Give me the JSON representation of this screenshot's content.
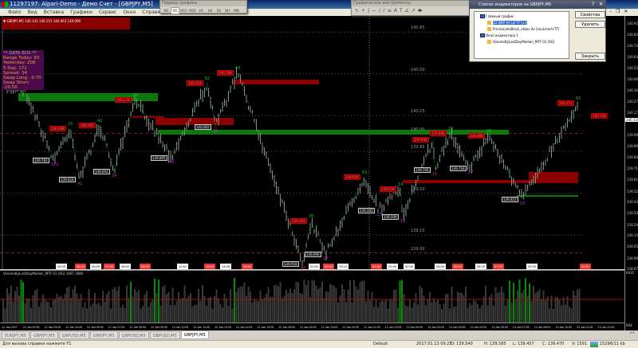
{
  "window": {
    "title": "11297197: Alpari-Demo - Демо Счет - [GBPJPY,M5]"
  },
  "menu": [
    "Файл",
    "Вид",
    "Вставка",
    "Графики",
    "Сервис",
    "Окно",
    "Справка"
  ],
  "period_toolbar": {
    "title": "Период графика",
    "periods": [
      "M1",
      "M5",
      "M15",
      "M30",
      "H1",
      "H4",
      "D1",
      "W1",
      "MN"
    ],
    "selected": "M5"
  },
  "tools_toolbar": {
    "title": "Графические инструменты",
    "icons": [
      "cursor-icon",
      "crosshair-icon",
      "vertical-line-icon",
      "horizontal-line-icon",
      "trendline-icon",
      "channel-icon",
      "fibo-icon",
      "text-icon",
      "label-icon",
      "gann-icon",
      "arrow-icon",
      "ellipse-icon"
    ]
  },
  "indicator_dialog": {
    "title": "Список индикаторов на GBPJPY,M5",
    "groups": [
      {
        "name": "Главный график",
        "items": [
          "ZZ NRP AA LB TT [x3]",
          "PriceLevelsBlack_oHjev 4x [LevLmod+TT]"
        ]
      },
      {
        "name": "Окно индикатора 1",
        "items": [
          "VolumeByLastDayMedian_MTF 01 [AG]"
        ]
      }
    ],
    "selected": "ZZ NRP AA LB TT [x3]",
    "buttons": {
      "properties": "Свойства",
      "delete": "Удалить",
      "close": "Закрыть"
    }
  },
  "chart": {
    "header": "▼ GBPJPY,M5  140.145 140.151 140.063 140.090",
    "current_price": "140.110",
    "right_label": "140.150",
    "level_labels": [
      "140.85",
      "140.50",
      "140.15",
      "140.00",
      "139.85",
      "139.50",
      "139.15",
      "139.00"
    ],
    "price_axis": [
      "140.925",
      "140.830",
      "140.740",
      "140.645",
      "140.550",
      "140.460",
      "140.365",
      "140.270",
      "140.175",
      "139.990",
      "139.895",
      "139.805",
      "139.710",
      "139.615",
      "139.520",
      "139.430",
      "139.335",
      "139.240",
      "139.150",
      "139.055",
      "138.960",
      "138.870"
    ],
    "data_box": {
      "title": "** DATA BOX **",
      "lines": [
        "Range Today: 93",
        "Yesterday: 208",
        "5 Day: 172",
        "Spread:    34",
        "Swap Long: -0.70",
        "Swap Short: -10.50"
      ]
    },
    "swings": [
      {
        "type": "high",
        "price": "140.385",
        "count": ""
      },
      {
        "type": "low",
        "price": "139.781",
        "count": "121"
      },
      {
        "type": "high",
        "price": "140.038",
        "count": "25"
      },
      {
        "type": "low",
        "price": "139.624",
        "count": "41"
      },
      {
        "type": "high",
        "price": "140.065",
        "count": "42"
      },
      {
        "type": "low",
        "price": "139.692",
        "count": "34"
      },
      {
        "type": "high",
        "price": "140.278",
        "count": "58"
      },
      {
        "type": "low",
        "price": "139.805",
        "count": "46"
      },
      {
        "type": "high",
        "price": "140.418",
        "count": "62"
      },
      {
        "type": "low",
        "price": "140.062",
        "count": "36"
      },
      {
        "type": "high",
        "price": "140.508",
        "count": "43"
      },
      {
        "type": "low",
        "price": "138.918",
        "count": "40"
      },
      {
        "type": "high",
        "price": "139.263",
        "count": "35"
      },
      {
        "type": "low",
        "price": "138.996",
        "count": "27"
      },
      {
        "type": "high",
        "price": "139.629",
        "count": "63"
      },
      {
        "type": "low",
        "price": "139.365",
        "count": "27"
      },
      {
        "type": "high",
        "price": "139.530",
        "count": "14"
      },
      {
        "type": "low",
        "price": "139.309",
        "count": "18"
      },
      {
        "type": "high",
        "price": "139.944",
        "count": "59"
      },
      {
        "type": "low",
        "price": "139.705",
        "count": "21"
      },
      {
        "type": "high",
        "price": "139.998",
        "count": "20"
      },
      {
        "type": "low",
        "price": "139.716",
        "count": "27"
      },
      {
        "type": "high",
        "price": "139.980",
        "count": "25"
      },
      {
        "type": "low",
        "price": "139.457",
        "count": "53"
      },
      {
        "type": "high",
        "price": "140.251",
        "count": "65"
      }
    ],
    "session_markers": [
      {
        "text": "04:05",
        "color": "white"
      },
      {
        "text": "05:20",
        "color": "red"
      },
      {
        "text": "05:05",
        "color": "white"
      },
      {
        "text": "07:00",
        "color": "red"
      },
      {
        "text": "08:00",
        "color": "white"
      },
      {
        "text": "09:20",
        "color": "red"
      },
      {
        "text": "11:40",
        "color": "white"
      },
      {
        "text": "13:20",
        "color": "red"
      },
      {
        "text": "14:05",
        "color": "white"
      },
      {
        "text": "15:40",
        "color": "red"
      },
      {
        "text": "21:00",
        "color": "white"
      },
      {
        "text": "20:20",
        "color": "red"
      },
      {
        "text": "23:10",
        "color": "white"
      },
      {
        "text": "21:40",
        "color": "red"
      },
      {
        "text": "20:40",
        "color": "white"
      },
      {
        "text": "02:00",
        "color": "white"
      },
      {
        "text": "04:05",
        "color": "white"
      },
      {
        "text": "05:00",
        "color": "red"
      },
      {
        "text": "06:20",
        "color": "white"
      },
      {
        "text": "07:20",
        "color": "red"
      },
      {
        "text": "09:20",
        "color": "white"
      },
      {
        "text": "11:00",
        "color": "red"
      }
    ]
  },
  "indicator_pane": {
    "label": "VolumeByLastDayMedian_MTF 01 [AG] 1667 3080",
    "axis_top": "6031",
    "axis_bottom": "608"
  },
  "time_axis": [
    "12 Jan 2017",
    "12 Jan 02:05",
    "12 Jan 03:05",
    "12 Jan 04:05",
    "12 Jan 06:05",
    "12 Jan 07:05",
    "12 Jan 08:05",
    "12 Jan 09:05",
    "12 Jan 10:05",
    "12 Jan 11:05",
    "12 Jan 12:05",
    "12 Jan 14:05",
    "12 Jan 15:05",
    "12 Jan 16:05",
    "12 Jan 18:05",
    "12 Jan 19:05",
    "12 Jan 20:05",
    "12 Jan 21:05",
    "12 Jan 23:05",
    "13 Jan 00:05",
    "13 Jan 02:05",
    "13 Jan 03:05",
    "13 Jan 04:05",
    "13 Jan 06:05",
    "13 Jan 07:05",
    "13 Jan 08:05",
    "13 Jan 10:05",
    "13 Jan 11:05",
    "13 Jan 12:05"
  ],
  "tabs": [
    {
      "label": "EURJPY,M5"
    },
    {
      "label": "GBPJPY,M5"
    },
    {
      "label": "GBPUSD,M5"
    },
    {
      "label": "GBPJPY,M5"
    },
    {
      "label": "GBPUSD,M5"
    },
    {
      "label": "GBPUSD,M5"
    },
    {
      "label": "GBPJPY,M5",
      "active": true
    }
  ],
  "status": {
    "help": "Для вызова справки нажмите F1",
    "profile": "Default",
    "time": "2017.01.13 09:25",
    "open": "O: 139.540",
    "high": "H: 139.585",
    "low": "L: 139.457",
    "close": "C: 139.470",
    "volume": "V: 1591",
    "traffic": "15296/11 kb"
  },
  "colors": {
    "bull_zone": "#0a7a0a",
    "bear_zone": "#8b0000",
    "candles": "#8a909a",
    "volume_highlight": "#0a8a0a",
    "volume": "#3a3a3a",
    "zigzag": "#1a8a1a"
  }
}
